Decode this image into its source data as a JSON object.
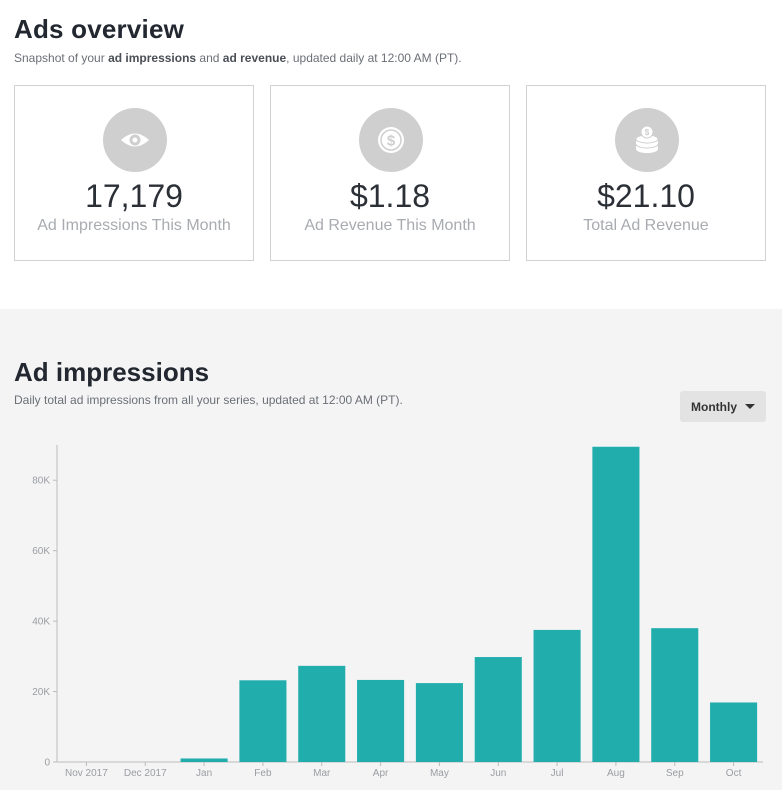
{
  "overview": {
    "title": "Ads overview",
    "subtitle_pre": "Snapshot of your ",
    "subtitle_b1": "ad impressions",
    "subtitle_mid": " and ",
    "subtitle_b2": "ad revenue",
    "subtitle_post": ", updated daily at 12:00 AM (PT).",
    "cards": [
      {
        "icon": "eye-icon",
        "value": "17,179",
        "label": "Ad Impressions This Month"
      },
      {
        "icon": "dollar-coin-icon",
        "value": "$1.18",
        "label": "Ad Revenue This Month"
      },
      {
        "icon": "coin-stack-icon",
        "value": "$21.10",
        "label": "Total Ad Revenue"
      }
    ]
  },
  "impressions": {
    "title": "Ad impressions",
    "subtitle": "Daily total ad impressions from all your series, updated at 12:00 AM (PT).",
    "dropdown_label": "Monthly"
  },
  "colors": {
    "bar": "#22adad",
    "card_icon_bg": "#cfcfcf",
    "section_bg": "#f4f4f4"
  },
  "chart_data": {
    "type": "bar",
    "categories": [
      "Nov 2017",
      "Dec 2017",
      "Jan",
      "Feb",
      "Mar",
      "Apr",
      "May",
      "Jun",
      "Jul",
      "Aug",
      "Sep",
      "Oct"
    ],
    "values": [
      0,
      0,
      1000,
      23200,
      27300,
      23300,
      22400,
      29800,
      37500,
      89500,
      38000,
      16900
    ],
    "yticks": [
      0,
      20000,
      40000,
      60000,
      80000
    ],
    "ytick_labels": [
      "0",
      "20K",
      "40K",
      "60K",
      "80K"
    ],
    "ylim": [
      0,
      90000
    ],
    "xlabel": "",
    "ylabel": "",
    "grid": false
  }
}
